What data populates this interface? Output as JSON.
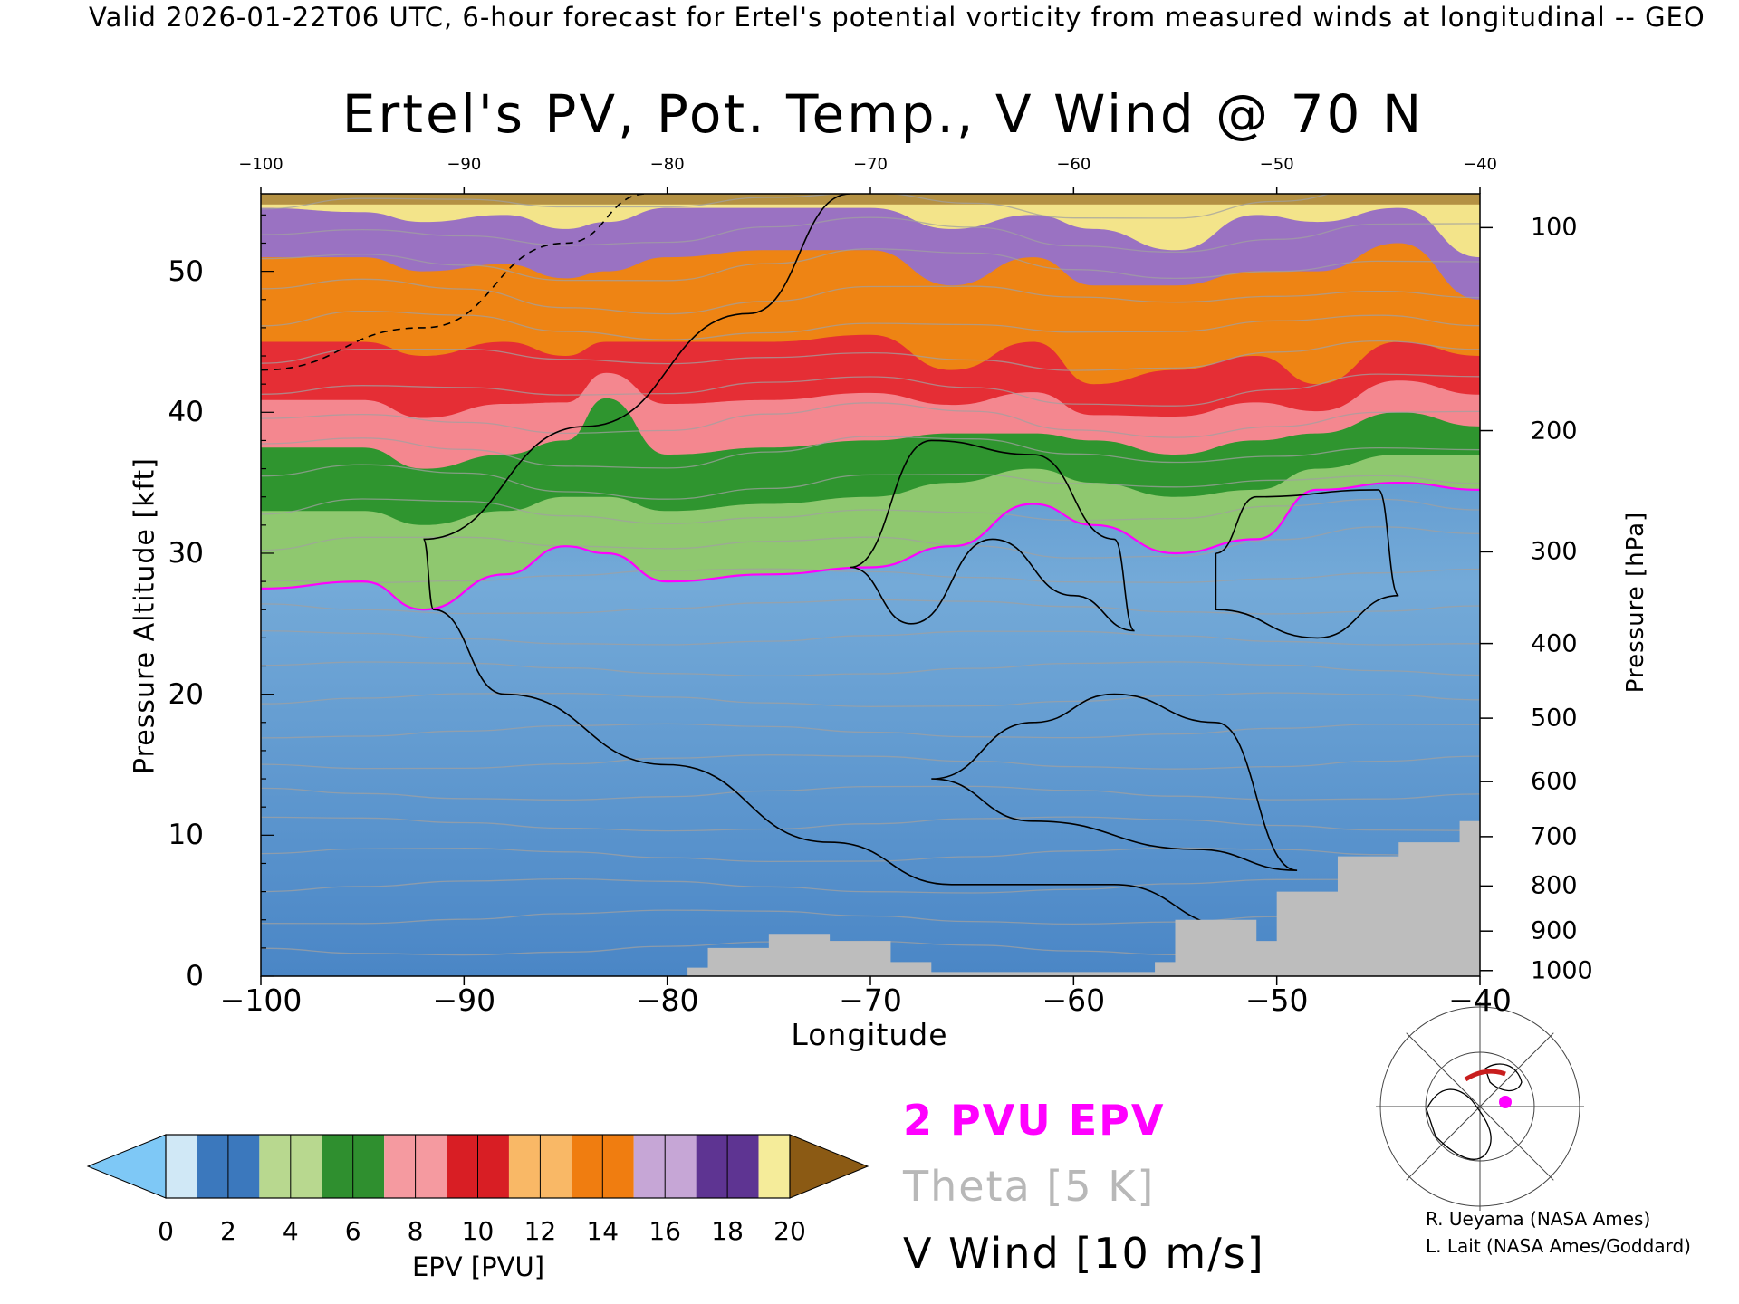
{
  "header": {
    "valid_line": "Valid 2026-01-22T06 UTC, 6-hour forecast for Ertel's potential vorticity from measured winds at longitudinal -- GEO"
  },
  "chart_data": {
    "type": "heatmap",
    "title": "Ertel's PV, Pot. Temp., V Wind @ 70 N",
    "xlabel": "Longitude",
    "ylabel_left": "Pressure Altitude [kft]",
    "ylabel_right": "Pressure [hPa]",
    "xlim": [
      -100,
      -40
    ],
    "ylim": [
      0,
      55.5
    ],
    "x_ticks": [
      -100,
      -90,
      -80,
      -70,
      -60,
      -50,
      -40
    ],
    "x_tick_labels": [
      "−100",
      "−90",
      "−80",
      "−70",
      "−60",
      "−50",
      "−40"
    ],
    "top_tick_labels": [
      "−100",
      "−90",
      "−80",
      "−70",
      "−60",
      "−50",
      "−40"
    ],
    "y_ticks": [
      0,
      10,
      20,
      30,
      40,
      50
    ],
    "pressure_ticks": [
      {
        "hpa": "100",
        "kft": 53.1
      },
      {
        "hpa": "200",
        "kft": 38.7
      },
      {
        "hpa": "300",
        "kft": 30.1
      },
      {
        "hpa": "400",
        "kft": 23.6
      },
      {
        "hpa": "500",
        "kft": 18.3
      },
      {
        "hpa": "600",
        "kft": 13.8
      },
      {
        "hpa": "700",
        "kft": 9.9
      },
      {
        "hpa": "800",
        "kft": 6.4
      },
      {
        "hpa": "900",
        "kft": 3.2
      },
      {
        "hpa": "1000",
        "kft": 0.4
      }
    ],
    "epv_bands": [
      {
        "lon": -100,
        "b2": 27.5,
        "b4": 33,
        "b6": 37.5,
        "b10": 45,
        "b13": 51,
        "b16": 54.5
      },
      {
        "lon": -95,
        "b2": 28,
        "b4": 33,
        "b6": 37.5,
        "b10": 45,
        "b13": 51,
        "b16": 54.2
      },
      {
        "lon": -92,
        "b2": 26,
        "b4": 32,
        "b6": 36,
        "b10": 44,
        "b13": 50,
        "b16": 53.5
      },
      {
        "lon": -88,
        "b2": 28.5,
        "b4": 33,
        "b6": 37,
        "b10": 45,
        "b13": 50.5,
        "b16": 54
      },
      {
        "lon": -85,
        "b2": 30.5,
        "b4": 34,
        "b6": 38,
        "b10": 44,
        "b13": 49.5,
        "b16": 53
      },
      {
        "lon": -83,
        "b2": 30,
        "b4": 34,
        "b6": 41,
        "b10": 45,
        "b13": 50,
        "b16": 53.5
      },
      {
        "lon": -80,
        "b2": 28,
        "b4": 33,
        "b6": 37,
        "b10": 45,
        "b13": 51,
        "b16": 54.5
      },
      {
        "lon": -75,
        "b2": 28.5,
        "b4": 33.5,
        "b6": 37.5,
        "b10": 45,
        "b13": 51.5,
        "b16": 54.5
      },
      {
        "lon": -70,
        "b2": 29,
        "b4": 34,
        "b6": 38,
        "b10": 45.5,
        "b13": 51.5,
        "b16": 54.5
      },
      {
        "lon": -66,
        "b2": 30.5,
        "b4": 35,
        "b6": 38.5,
        "b10": 43,
        "b13": 49,
        "b16": 53
      },
      {
        "lon": -62,
        "b2": 33.5,
        "b4": 36,
        "b6": 38.5,
        "b10": 45,
        "b13": 51,
        "b16": 54
      },
      {
        "lon": -59,
        "b2": 32,
        "b4": 35,
        "b6": 38,
        "b10": 42,
        "b13": 49,
        "b16": 53
      },
      {
        "lon": -55,
        "b2": 30,
        "b4": 34,
        "b6": 37,
        "b10": 43,
        "b13": 49,
        "b16": 51.5
      },
      {
        "lon": -51,
        "b2": 31,
        "b4": 34.5,
        "b6": 38,
        "b10": 44,
        "b13": 50,
        "b16": 54
      },
      {
        "lon": -48,
        "b2": 34.5,
        "b4": 36,
        "b6": 38.5,
        "b10": 42,
        "b13": 50,
        "b16": 53.5
      },
      {
        "lon": -44,
        "b2": 35,
        "b4": 37,
        "b6": 40,
        "b10": 45,
        "b13": 52,
        "b16": 54.5
      },
      {
        "lon": -40,
        "b2": 34.5,
        "b4": 37,
        "b6": 39,
        "b10": 44,
        "b13": 48,
        "b16": 51
      }
    ],
    "v_wind_zero_contour": [
      {
        "lon": -92,
        "kft": 31
      },
      {
        "lon": -91.5,
        "kft": 26
      },
      {
        "lon": -88,
        "kft": 20
      },
      {
        "lon": -80,
        "kft": 15
      },
      {
        "lon": -72,
        "kft": 9.5
      },
      {
        "lon": -66,
        "kft": 6.5
      },
      {
        "lon": -58,
        "kft": 6.5
      },
      {
        "lon": -52,
        "kft": 3.5
      }
    ],
    "v_wind_zero_contour_upper": [
      {
        "lon": -92,
        "kft": 31
      },
      {
        "lon": -84,
        "kft": 39
      },
      {
        "lon": -76,
        "kft": 47
      },
      {
        "lon": -71,
        "kft": 55.5
      }
    ],
    "v_wind_10_contour_a": [
      {
        "lon": -71,
        "kft": 29
      },
      {
        "lon": -67,
        "kft": 38
      },
      {
        "lon": -62,
        "kft": 37
      },
      {
        "lon": -58,
        "kft": 31
      },
      {
        "lon": -57,
        "kft": 24.5
      },
      {
        "lon": -60,
        "kft": 27
      },
      {
        "lon": -64,
        "kft": 31
      },
      {
        "lon": -68,
        "kft": 25
      },
      {
        "lon": -71,
        "kft": 29
      }
    ],
    "v_wind_10_contour_b": [
      {
        "lon": -67,
        "kft": 14
      },
      {
        "lon": -62,
        "kft": 18
      },
      {
        "lon": -58,
        "kft": 20
      },
      {
        "lon": -53,
        "kft": 18
      },
      {
        "lon": -49,
        "kft": 7.5
      },
      {
        "lon": -54,
        "kft": 9
      },
      {
        "lon": -62,
        "kft": 11
      },
      {
        "lon": -67,
        "kft": 14
      }
    ],
    "v_wind_10_contour_c": [
      {
        "lon": -53,
        "kft": 30
      },
      {
        "lon": -51,
        "kft": 34
      },
      {
        "lon": -45,
        "kft": 34.5
      },
      {
        "lon": -44,
        "kft": 27
      },
      {
        "lon": -48,
        "kft": 24
      },
      {
        "lon": -53,
        "kft": 26
      },
      {
        "lon": -53,
        "kft": 30
      }
    ],
    "v_wind_neg_contour": [
      {
        "lon": -100,
        "kft": 43
      },
      {
        "lon": -92,
        "kft": 46
      },
      {
        "lon": -85,
        "kft": 52
      },
      {
        "lon": -81,
        "kft": 55.5
      }
    ],
    "terrain": [
      {
        "lon": -79,
        "kft": 0.6
      },
      {
        "lon": -78,
        "kft": 2
      },
      {
        "lon": -75,
        "kft": 3
      },
      {
        "lon": -72,
        "kft": 2.5
      },
      {
        "lon": -69,
        "kft": 1
      },
      {
        "lon": -67,
        "kft": 0.3
      },
      {
        "lon": -56,
        "kft": 1
      },
      {
        "lon": -55,
        "kft": 4
      },
      {
        "lon": -51,
        "kft": 2.5
      },
      {
        "lon": -50,
        "kft": 6
      },
      {
        "lon": -47,
        "kft": 8.5
      },
      {
        "lon": -44,
        "kft": 9.5
      },
      {
        "lon": -41,
        "kft": 11
      },
      {
        "lon": -40,
        "kft": 12
      }
    ],
    "colorbar": {
      "label": "EPV [PVU]",
      "ticks": [
        "0",
        "2",
        "4",
        "6",
        "8",
        "10",
        "12",
        "14",
        "16",
        "18",
        "20"
      ],
      "colors": [
        "#d0e8f6",
        "#3b78bd",
        "#b8d88f",
        "#2f8f2f",
        "#f59aa0",
        "#d81e24",
        "#f9b866",
        "#f07d10",
        "#c6a6d6",
        "#5e3492",
        "#f5ec9a",
        "#8b5a14"
      ],
      "under_color": "#7ec8f6",
      "over_color": "#8b5a14"
    }
  },
  "legend": {
    "epv": "2 PVU EPV",
    "theta": "Theta [5 K]",
    "wind": "V Wind [10 m/s]"
  },
  "credits": {
    "line1": "R. Ueyama (NASA Ames)",
    "line2": "L. Lait (NASA Ames/Goddard)"
  },
  "colors": {
    "epv_contour": "#ff00ff",
    "theta_contour": "#a0a0a0",
    "wind_contour": "#000000",
    "terrain": "#bdbdbd"
  }
}
